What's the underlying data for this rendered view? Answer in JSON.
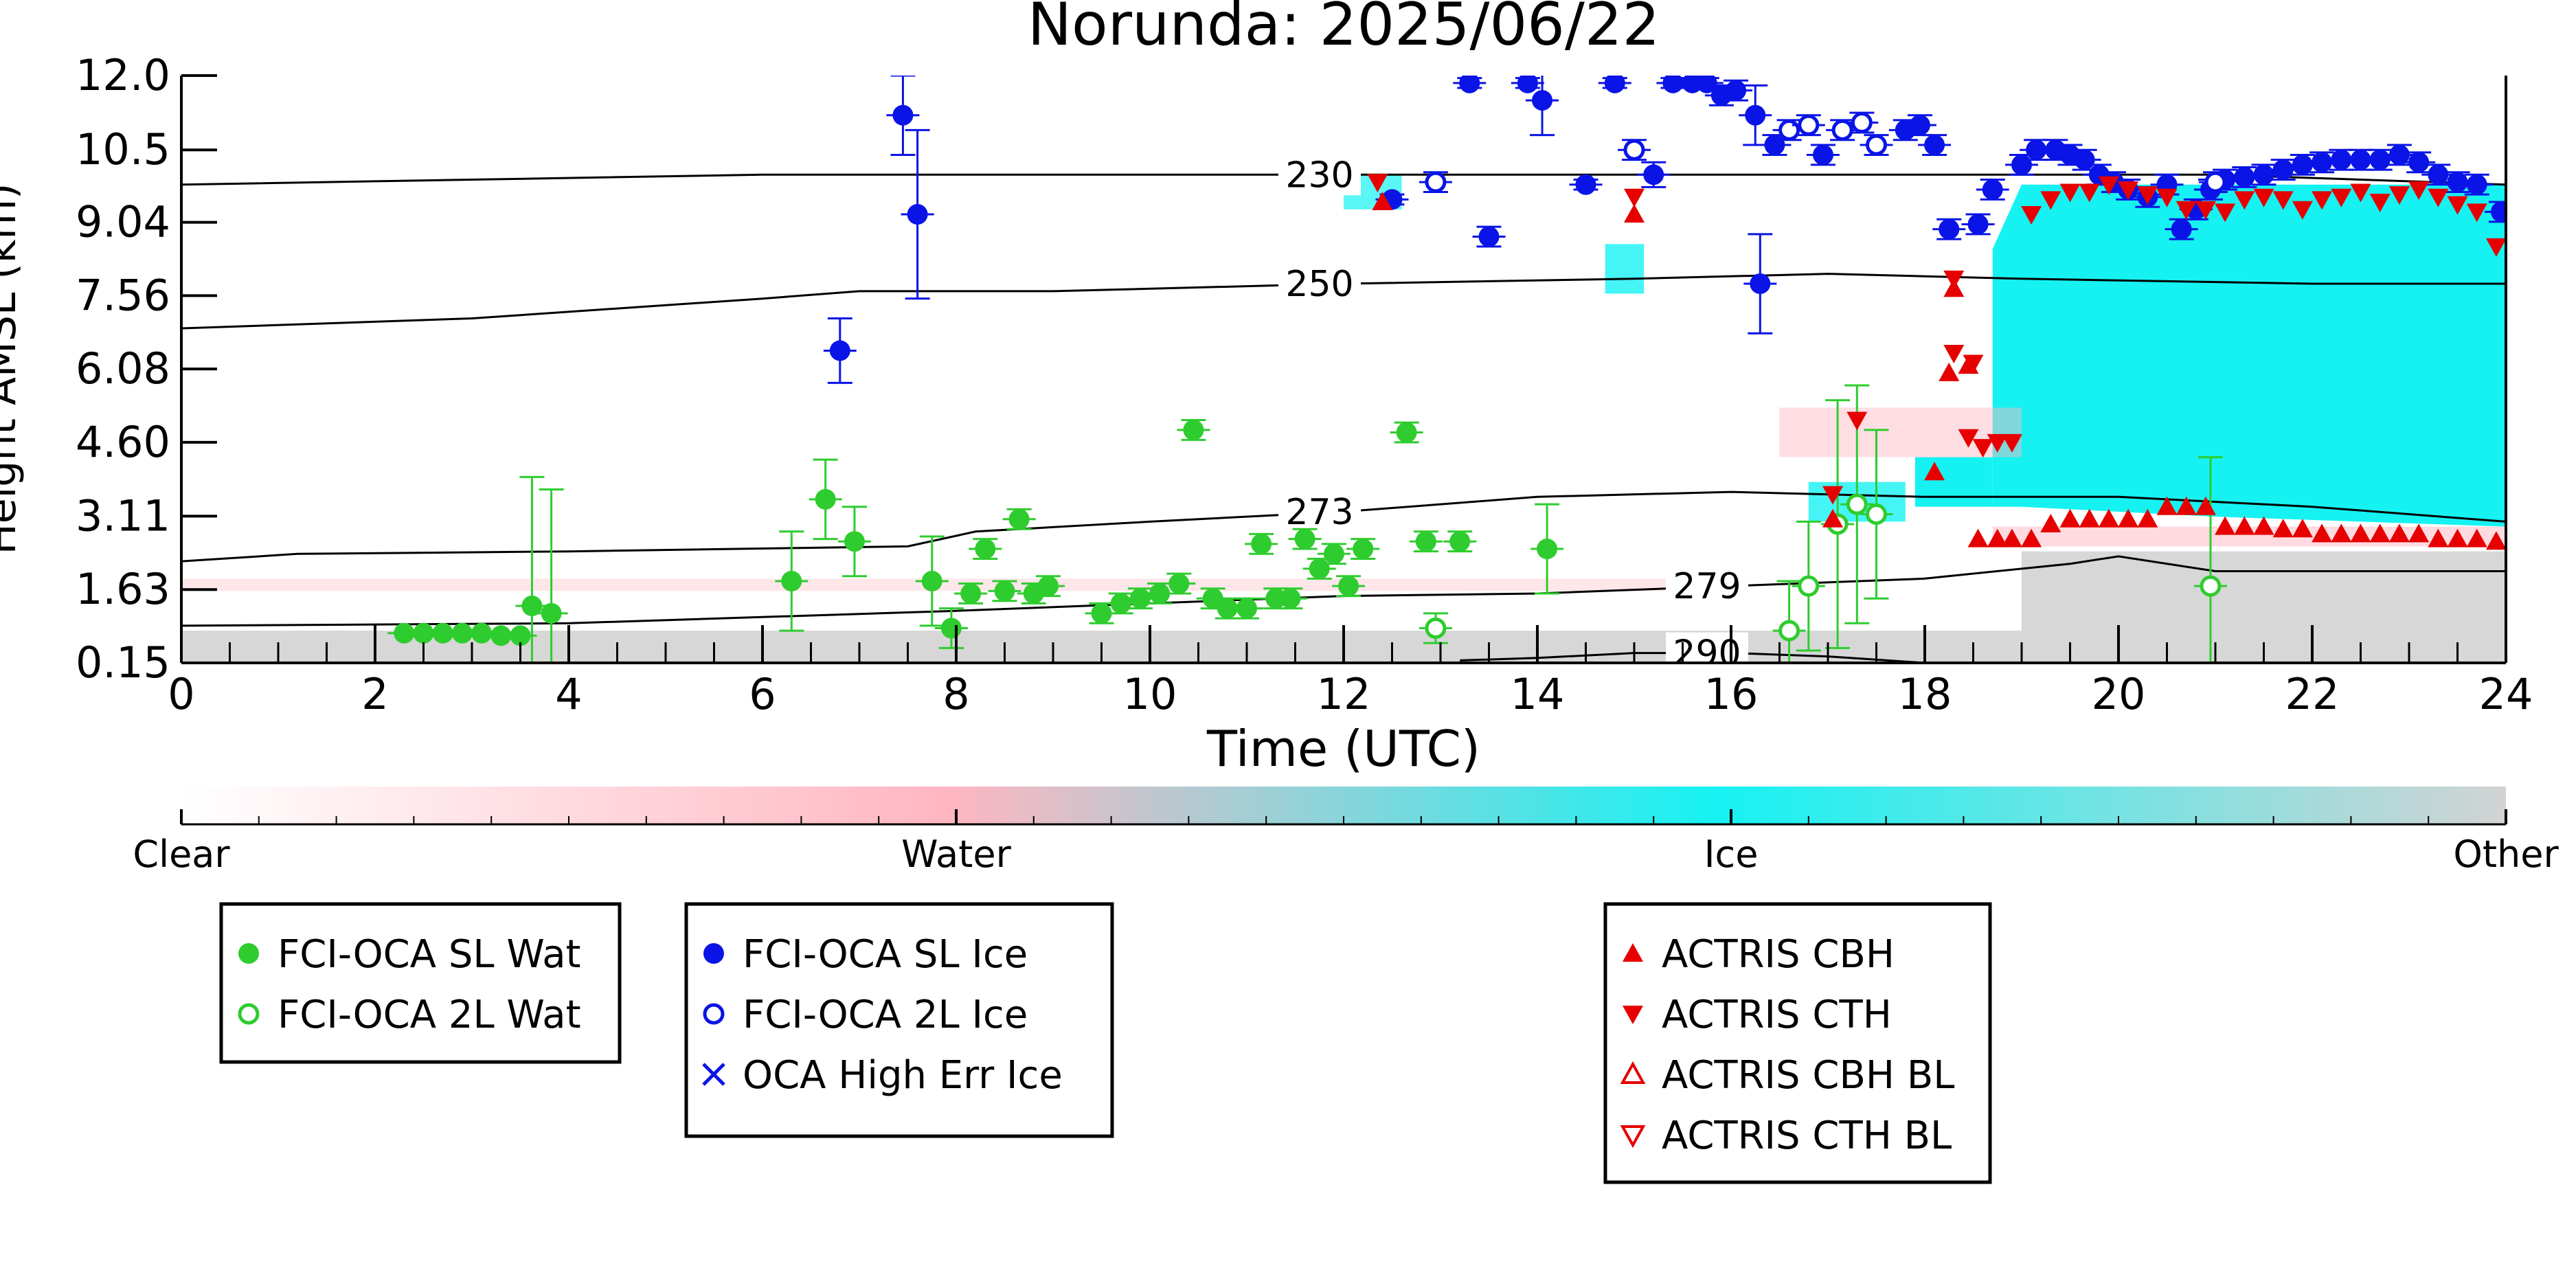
{
  "chart_data": {
    "type": "scatter",
    "title": "Norunda: 2025/06/22",
    "xlabel": "Time (UTC)",
    "ylabel": "Height AMSL (km)",
    "xlim": [
      0,
      24
    ],
    "ylim": [
      0.15,
      12.0
    ],
    "x_ticks": [
      0,
      2,
      4,
      6,
      8,
      10,
      12,
      14,
      16,
      18,
      20,
      22,
      24
    ],
    "y_ticks": [
      "0.15",
      "1.63",
      "3.11",
      "4.60",
      "6.08",
      "7.56",
      "9.04",
      "10.5",
      "12.0"
    ],
    "colors": {
      "water_sl": "#2ecc2e",
      "ice_sl": "#0a14e6",
      "actris": "#e60000",
      "ice_bg": "#16f2f2",
      "water_bg": "#ffb6c1",
      "other_bg": "#d3d3d3"
    },
    "colorbar": {
      "labels": [
        "Clear",
        "Water",
        "Ice",
        "Other"
      ]
    },
    "temperature_contours": [
      {
        "label": "230",
        "points": [
          [
            0,
            9.8
          ],
          [
            3,
            9.9
          ],
          [
            6,
            10.0
          ],
          [
            9,
            10.0
          ],
          [
            12,
            10.0
          ],
          [
            15,
            10.0
          ],
          [
            18,
            10.0
          ],
          [
            21,
            10.0
          ],
          [
            24,
            9.8
          ]
        ]
      },
      {
        "label": "250",
        "points": [
          [
            0,
            6.9
          ],
          [
            3,
            7.1
          ],
          [
            6,
            7.5
          ],
          [
            7,
            7.65
          ],
          [
            9,
            7.65
          ],
          [
            12,
            7.8
          ],
          [
            15,
            7.9
          ],
          [
            17,
            8.0
          ],
          [
            19,
            7.9
          ],
          [
            22,
            7.8
          ],
          [
            24,
            7.8
          ]
        ]
      },
      {
        "label": "273",
        "points": [
          [
            0,
            2.2
          ],
          [
            1.2,
            2.35
          ],
          [
            4,
            2.4
          ],
          [
            7.5,
            2.5
          ],
          [
            8.2,
            2.8
          ],
          [
            10,
            3.0
          ],
          [
            12,
            3.2
          ],
          [
            14,
            3.5
          ],
          [
            16,
            3.6
          ],
          [
            18,
            3.5
          ],
          [
            20,
            3.5
          ],
          [
            22,
            3.3
          ],
          [
            24,
            3.0
          ]
        ]
      },
      {
        "label": "279",
        "points": [
          [
            0,
            0.9
          ],
          [
            4,
            0.95
          ],
          [
            8,
            1.2
          ],
          [
            10,
            1.35
          ],
          [
            12,
            1.5
          ],
          [
            14,
            1.55
          ],
          [
            16,
            1.7
          ],
          [
            18,
            1.85
          ],
          [
            19.5,
            2.15
          ],
          [
            20,
            2.3
          ],
          [
            21,
            2.0
          ],
          [
            24,
            2.0
          ]
        ]
      },
      {
        "label": "290",
        "points": [
          [
            13.2,
            0.2
          ],
          [
            14,
            0.25
          ],
          [
            15,
            0.35
          ],
          [
            16,
            0.35
          ],
          [
            17,
            0.28
          ],
          [
            18,
            0.15
          ]
        ]
      }
    ],
    "series": [
      {
        "name": "FCI-OCA SL Wat",
        "style": "filled-circle",
        "color": "#2ecc2e",
        "points": [
          [
            2.3,
            0.75,
            0
          ],
          [
            2.5,
            0.75,
            0
          ],
          [
            2.7,
            0.75,
            0
          ],
          [
            2.9,
            0.75,
            0
          ],
          [
            3.1,
            0.75,
            0
          ],
          [
            3.3,
            0.7,
            0
          ],
          [
            3.5,
            0.7,
            0
          ],
          [
            3.62,
            1.3,
            2.6
          ],
          [
            3.82,
            1.15,
            2.5
          ],
          [
            6.3,
            1.8,
            1.0
          ],
          [
            6.65,
            3.45,
            0.8
          ],
          [
            6.95,
            2.6,
            0.7
          ],
          [
            7.75,
            1.8,
            0.9
          ],
          [
            7.95,
            0.85,
            0.4
          ],
          [
            8.15,
            1.55,
            0.2
          ],
          [
            8.3,
            2.45,
            0.2
          ],
          [
            8.5,
            1.6,
            0.2
          ],
          [
            8.65,
            3.05,
            0.2
          ],
          [
            8.8,
            1.55,
            0.2
          ],
          [
            8.95,
            1.7,
            0.2
          ],
          [
            9.5,
            1.15,
            0.2
          ],
          [
            9.7,
            1.35,
            0.2
          ],
          [
            9.9,
            1.45,
            0.2
          ],
          [
            10.1,
            1.55,
            0.2
          ],
          [
            10.3,
            1.75,
            0.2
          ],
          [
            10.45,
            4.85,
            0.2
          ],
          [
            10.65,
            1.45,
            0.2
          ],
          [
            10.8,
            1.25,
            0.2
          ],
          [
            11.0,
            1.25,
            0.2
          ],
          [
            11.15,
            2.55,
            0.2
          ],
          [
            11.3,
            1.45,
            0.2
          ],
          [
            11.45,
            1.45,
            0.2
          ],
          [
            11.6,
            2.65,
            0.2
          ],
          [
            11.75,
            2.05,
            0.2
          ],
          [
            11.9,
            2.35,
            0.2
          ],
          [
            12.05,
            1.7,
            0.2
          ],
          [
            12.2,
            2.45,
            0.2
          ],
          [
            12.65,
            4.8,
            0.2
          ],
          [
            12.85,
            2.6,
            0.2
          ],
          [
            13.2,
            2.6,
            0.2
          ],
          [
            14.1,
            2.45,
            0.9
          ]
        ]
      },
      {
        "name": "FCI-OCA 2L Wat",
        "style": "open-circle",
        "color": "#2ecc2e",
        "points": [
          [
            12.95,
            0.85,
            0.3
          ],
          [
            16.6,
            0.8,
            1.0
          ],
          [
            16.8,
            1.7,
            1.3
          ],
          [
            17.1,
            2.95,
            2.5
          ],
          [
            17.3,
            3.35,
            2.4
          ],
          [
            17.5,
            3.15,
            1.7
          ],
          [
            20.95,
            1.7,
            2.6
          ]
        ]
      },
      {
        "name": "FCI-OCA SL Ice",
        "style": "filled-circle",
        "color": "#0a14e6",
        "points": [
          [
            6.8,
            6.45,
            0.65
          ],
          [
            7.45,
            11.2,
            0.8
          ],
          [
            7.6,
            9.2,
            1.7
          ],
          [
            12.5,
            9.5,
            0.1
          ],
          [
            13.3,
            11.85,
            0.1
          ],
          [
            13.5,
            8.75,
            0.2
          ],
          [
            13.9,
            11.85,
            0.1
          ],
          [
            14.05,
            11.5,
            0.7
          ],
          [
            14.5,
            9.8,
            0.1
          ],
          [
            14.8,
            11.85,
            0.1
          ],
          [
            15.2,
            10.0,
            0.25
          ],
          [
            15.4,
            11.85,
            0.1
          ],
          [
            15.6,
            11.85,
            0.1
          ],
          [
            15.75,
            11.85,
            0.1
          ],
          [
            15.9,
            11.6,
            0.2
          ],
          [
            16.05,
            11.7,
            0.2
          ],
          [
            16.25,
            11.2,
            0.6
          ],
          [
            16.3,
            7.8,
            1.0
          ],
          [
            16.45,
            10.6,
            0.2
          ],
          [
            16.95,
            10.4,
            0.2
          ],
          [
            17.8,
            10.9,
            0.2
          ],
          [
            17.95,
            11.0,
            0.2
          ],
          [
            18.1,
            10.6,
            0.2
          ],
          [
            18.25,
            8.9,
            0.2
          ],
          [
            18.55,
            9.0,
            0.2
          ],
          [
            18.7,
            9.7,
            0.2
          ],
          [
            19.0,
            10.2,
            0.2
          ],
          [
            19.15,
            10.5,
            0.2
          ],
          [
            19.35,
            10.5,
            0.2
          ],
          [
            19.5,
            10.4,
            0.2
          ],
          [
            19.65,
            10.3,
            0.2
          ],
          [
            19.8,
            10.0,
            0.2
          ],
          [
            19.95,
            9.85,
            0.2
          ],
          [
            20.1,
            9.7,
            0.2
          ],
          [
            20.3,
            9.55,
            0.2
          ],
          [
            20.5,
            9.8,
            0.2
          ],
          [
            20.65,
            8.9,
            0.2
          ],
          [
            20.8,
            9.3,
            0.2
          ],
          [
            20.95,
            9.7,
            0.2
          ],
          [
            21.1,
            9.9,
            0.2
          ],
          [
            21.3,
            9.95,
            0.2
          ],
          [
            21.5,
            10.0,
            0.2
          ],
          [
            21.7,
            10.1,
            0.2
          ],
          [
            21.9,
            10.2,
            0.2
          ],
          [
            22.1,
            10.25,
            0.2
          ],
          [
            22.3,
            10.3,
            0.2
          ],
          [
            22.5,
            10.3,
            0.2
          ],
          [
            22.7,
            10.3,
            0.2
          ],
          [
            22.9,
            10.4,
            0.2
          ],
          [
            23.1,
            10.25,
            0.2
          ],
          [
            23.3,
            10.0,
            0.2
          ],
          [
            23.5,
            9.85,
            0.2
          ],
          [
            23.7,
            9.8,
            0.2
          ],
          [
            23.95,
            9.25,
            0.2
          ]
        ]
      },
      {
        "name": "FCI-OCA 2L Ice",
        "style": "open-circle",
        "color": "#0a14e6",
        "points": [
          [
            12.95,
            9.85,
            0.2
          ],
          [
            15.0,
            10.5,
            0.2
          ],
          [
            16.6,
            10.9,
            0.2
          ],
          [
            16.8,
            11.0,
            0.2
          ],
          [
            17.15,
            10.9,
            0.2
          ],
          [
            17.35,
            11.05,
            0.2
          ],
          [
            17.5,
            10.6,
            0.2
          ],
          [
            21.0,
            9.85,
            0.2
          ]
        ]
      },
      {
        "name": "OCA High Err Ice",
        "style": "x",
        "color": "#0a14e6",
        "points": []
      },
      {
        "name": "ACTRIS CBH",
        "style": "filled-triangle-up",
        "color": "#e60000",
        "points": [
          [
            12.4,
            9.45
          ],
          [
            15.0,
            9.2
          ],
          [
            18.25,
            6.0
          ],
          [
            18.45,
            6.15
          ],
          [
            18.3,
            7.7
          ],
          [
            18.1,
            4.0
          ],
          [
            18.55,
            2.65
          ],
          [
            18.75,
            2.65
          ],
          [
            18.9,
            2.65
          ],
          [
            19.1,
            2.65
          ],
          [
            19.3,
            2.95
          ],
          [
            19.5,
            3.05
          ],
          [
            19.7,
            3.05
          ],
          [
            19.9,
            3.05
          ],
          [
            20.1,
            3.05
          ],
          [
            20.3,
            3.05
          ],
          [
            20.5,
            3.3
          ],
          [
            20.7,
            3.3
          ],
          [
            20.9,
            3.3
          ],
          [
            21.1,
            2.9
          ],
          [
            21.3,
            2.9
          ],
          [
            21.5,
            2.9
          ],
          [
            21.7,
            2.85
          ],
          [
            21.9,
            2.85
          ],
          [
            22.1,
            2.75
          ],
          [
            22.3,
            2.75
          ],
          [
            22.5,
            2.75
          ],
          [
            22.7,
            2.75
          ],
          [
            22.9,
            2.75
          ],
          [
            23.1,
            2.75
          ],
          [
            23.3,
            2.65
          ],
          [
            23.5,
            2.65
          ],
          [
            23.7,
            2.65
          ],
          [
            23.9,
            2.6
          ],
          [
            17.05,
            3.05
          ]
        ]
      },
      {
        "name": "ACTRIS CTH",
        "style": "filled-triangle-down",
        "color": "#e60000",
        "points": [
          [
            12.35,
            9.85
          ],
          [
            15.0,
            9.55
          ],
          [
            18.3,
            6.4
          ],
          [
            18.5,
            6.2
          ],
          [
            18.3,
            7.9
          ],
          [
            18.45,
            4.7
          ],
          [
            18.6,
            4.5
          ],
          [
            18.75,
            4.6
          ],
          [
            18.9,
            4.6
          ],
          [
            19.1,
            9.2
          ],
          [
            19.3,
            9.5
          ],
          [
            19.5,
            9.65
          ],
          [
            19.7,
            9.65
          ],
          [
            19.9,
            9.8
          ],
          [
            20.1,
            9.7
          ],
          [
            20.3,
            9.6
          ],
          [
            20.5,
            9.55
          ],
          [
            20.7,
            9.3
          ],
          [
            20.9,
            9.3
          ],
          [
            21.1,
            9.25
          ],
          [
            21.3,
            9.5
          ],
          [
            21.5,
            9.55
          ],
          [
            21.7,
            9.5
          ],
          [
            21.9,
            9.3
          ],
          [
            22.1,
            9.5
          ],
          [
            22.3,
            9.55
          ],
          [
            22.5,
            9.65
          ],
          [
            22.7,
            9.45
          ],
          [
            22.9,
            9.6
          ],
          [
            23.1,
            9.7
          ],
          [
            23.3,
            9.55
          ],
          [
            23.5,
            9.4
          ],
          [
            23.7,
            9.25
          ],
          [
            23.9,
            8.55
          ],
          [
            17.3,
            5.05
          ],
          [
            17.05,
            3.55
          ]
        ]
      },
      {
        "name": "ACTRIS CBH BL",
        "style": "open-triangle-up",
        "color": "#e60000",
        "points": []
      },
      {
        "name": "ACTRIS CTH BL",
        "style": "open-triangle-down",
        "color": "#e60000",
        "points": []
      }
    ],
    "legends": [
      [
        "FCI-OCA SL Wat",
        "FCI-OCA 2L Wat"
      ],
      [
        "FCI-OCA SL Ice",
        "FCI-OCA 2L Ice",
        "OCA High Err Ice"
      ],
      [
        "ACTRIS CBH",
        "ACTRIS CTH",
        "ACTRIS CBH BL",
        "ACTRIS CTH BL"
      ]
    ]
  }
}
